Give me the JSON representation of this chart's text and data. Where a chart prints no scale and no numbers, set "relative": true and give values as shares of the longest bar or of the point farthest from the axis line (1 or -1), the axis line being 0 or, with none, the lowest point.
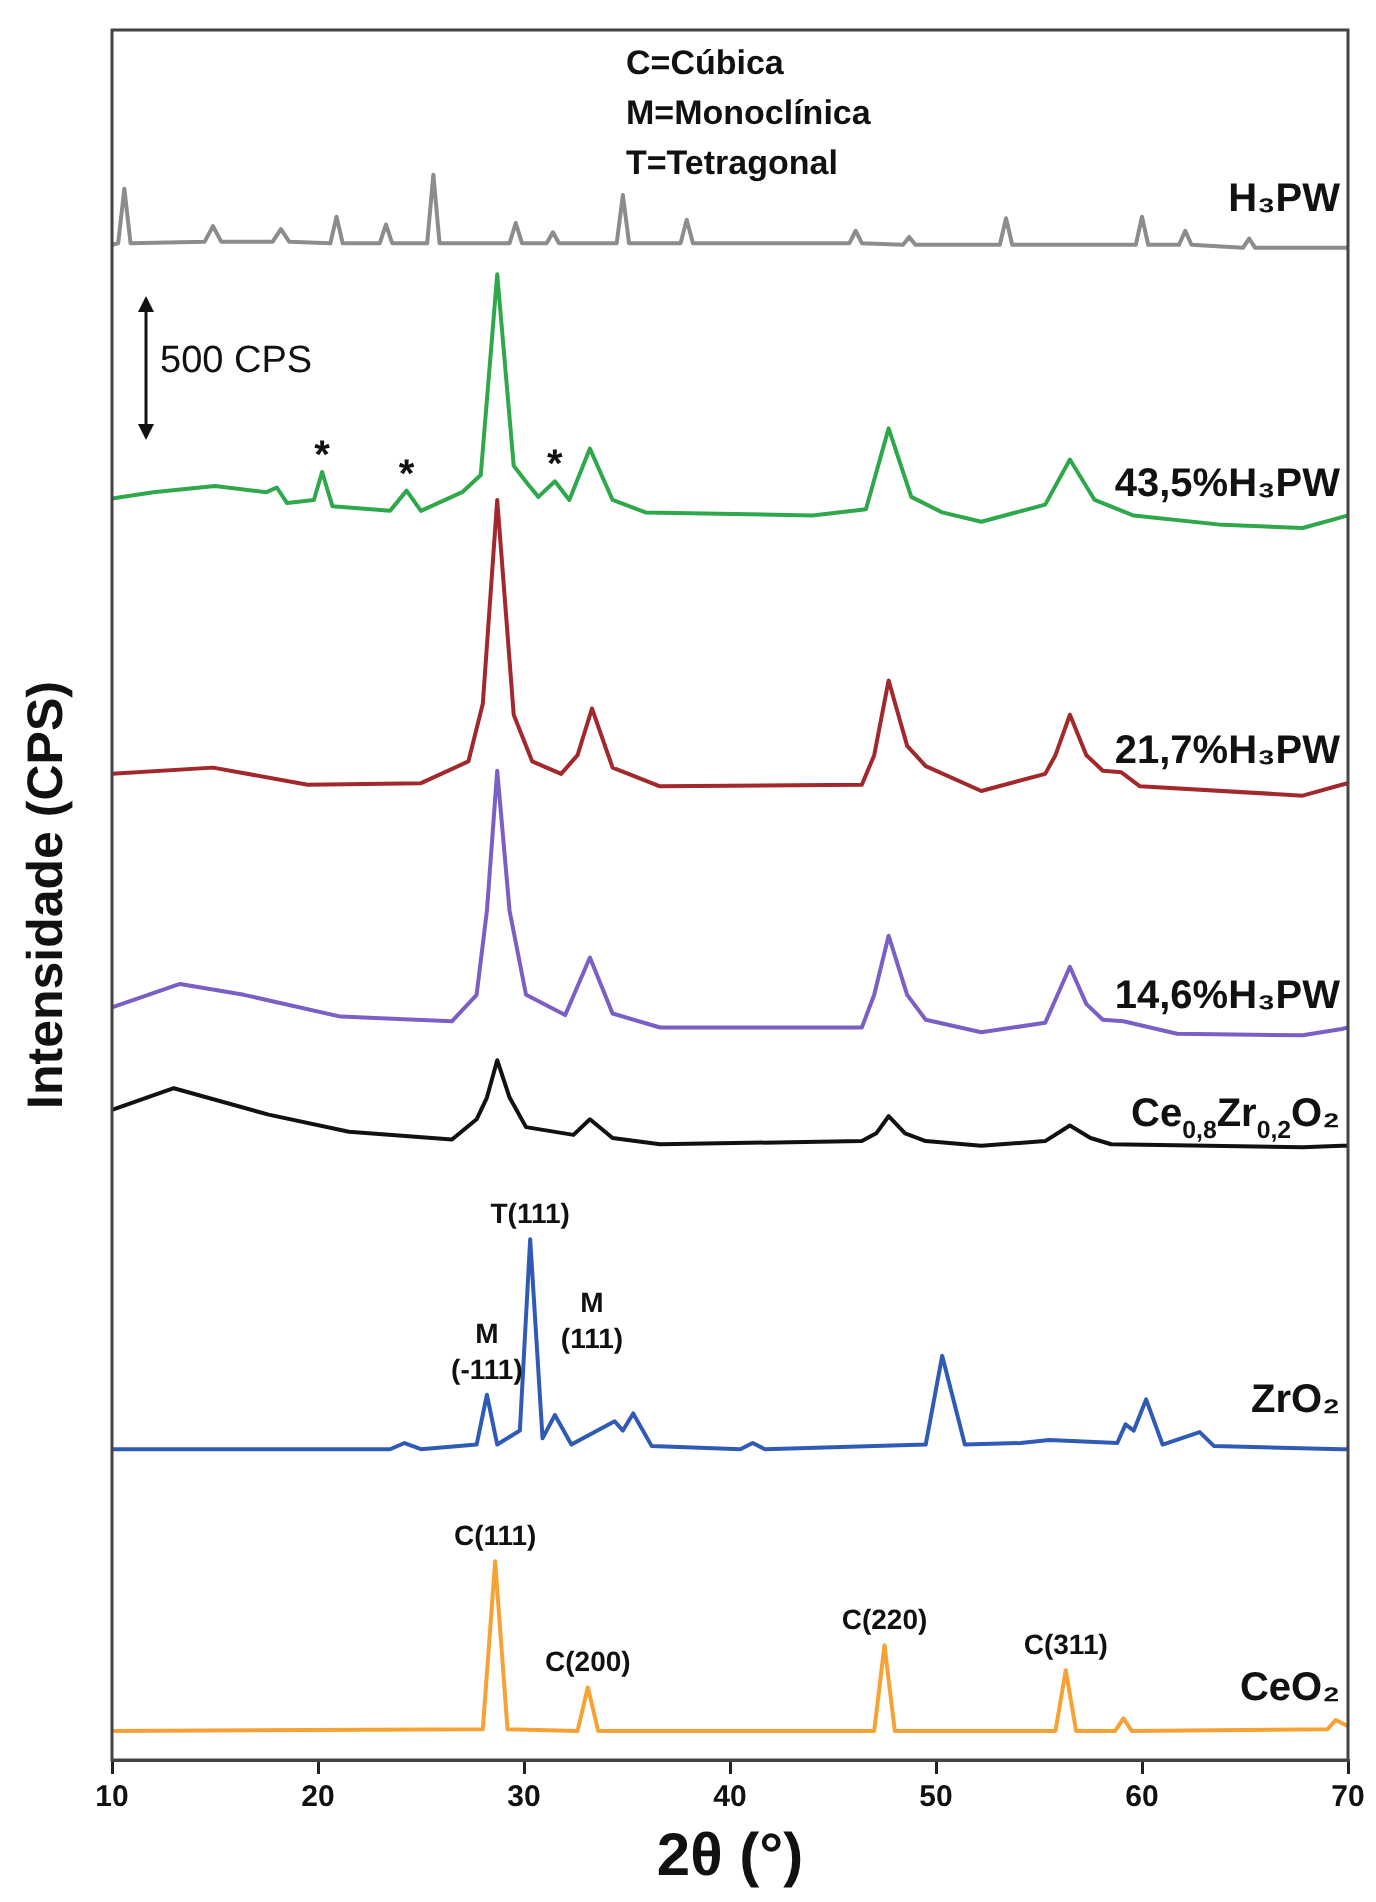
{
  "chart_data": {
    "type": "line",
    "xlabel": "2θ (°)",
    "ylabel": "Intensidade (CPS)",
    "relative": true,
    "marker": "none",
    "xlim": [
      10,
      70
    ],
    "xticks": [
      10,
      20,
      30,
      40,
      50,
      60,
      70
    ],
    "annotations": [
      "C=Cúbica",
      "M=Monoclínica",
      "T=Tetragonal",
      "500 CPS",
      {
        "text": "*",
        "x": 20.2,
        "y": 0.809
      },
      {
        "text": "*",
        "x": 24.3,
        "y": 0.797
      },
      {
        "text": "*",
        "x": 31.5,
        "y": 0.803
      },
      {
        "text": "T(111)",
        "x": 30.3,
        "y": 0.316
      },
      {
        "text": "M\n(-111)",
        "x": 28.2,
        "y": 0.216
      },
      "M\n(111)",
      {
        "text": "C(111)",
        "x": 28.6,
        "y": 0.109
      },
      {
        "text": "C(200)",
        "x": 33.1,
        "y": 0.028
      },
      {
        "text": "C(220)",
        "x": 47.5,
        "y": 0.055
      },
      {
        "text": "C(311)",
        "x": 56.3,
        "y": 0.039
      }
    ],
    "series": [
      {
        "name": "H₃PW",
        "color": "#8c8c8c",
        "x": [
          10,
          10.3,
          10.6,
          10.9,
          14.5,
          14.9,
          15.3,
          17.8,
          18.2,
          18.6,
          20.6,
          20.9,
          21.2,
          23,
          23.3,
          23.6,
          25.3,
          25.6,
          25.9,
          29.3,
          29.6,
          29.9,
          31.1,
          31.4,
          31.7,
          34.5,
          34.8,
          35.1,
          37.6,
          37.9,
          38.2,
          45.8,
          46.1,
          46.4,
          48.4,
          48.7,
          49,
          53.1,
          53.4,
          53.7,
          59.7,
          60,
          60.3,
          61.8,
          62.1,
          62.4,
          64.9,
          65.2,
          65.5,
          70
        ],
        "values": [
          0.955,
          0.956,
          0.991,
          0.956,
          0.957,
          0.967,
          0.957,
          0.957,
          0.965,
          0.957,
          0.956,
          0.973,
          0.956,
          0.956,
          0.968,
          0.956,
          0.956,
          1,
          0.956,
          0.956,
          0.969,
          0.956,
          0.956,
          0.963,
          0.956,
          0.956,
          0.987,
          0.956,
          0.956,
          0.971,
          0.956,
          0.956,
          0.964,
          0.956,
          0.955,
          0.96,
          0.955,
          0.955,
          0.972,
          0.955,
          0.955,
          0.973,
          0.955,
          0.955,
          0.964,
          0.955,
          0.953,
          0.959,
          0.953,
          0.953
        ]
      },
      {
        "name": "43,5%H₃PW",
        "color": "#2ea84a",
        "x": [
          10,
          12,
          15,
          17.5,
          18,
          18.5,
          19.8,
          20.2,
          20.7,
          23.5,
          24.3,
          25,
          27,
          27.9,
          28.7,
          29.5,
          30.2,
          30.7,
          31.5,
          32.2,
          33.2,
          34.3,
          35.9,
          44,
          46.6,
          47.7,
          48.8,
          50.3,
          52.2,
          55.3,
          56.5,
          57.7,
          59.6,
          63.9,
          67.8,
          69.7,
          70
        ],
        "values": [
          0.792,
          0.796,
          0.8,
          0.796,
          0.799,
          0.789,
          0.791,
          0.809,
          0.787,
          0.784,
          0.797,
          0.784,
          0.796,
          0.807,
          0.936,
          0.813,
          0.801,
          0.793,
          0.803,
          0.791,
          0.824,
          0.791,
          0.783,
          0.781,
          0.785,
          0.837,
          0.793,
          0.783,
          0.777,
          0.788,
          0.817,
          0.791,
          0.781,
          0.775,
          0.773,
          0.78,
          0.781
        ]
      },
      {
        "name": "21,7%H₃PW",
        "color": "#a3282c",
        "x": [
          10,
          14.9,
          19.5,
          25,
          27.3,
          28,
          28.7,
          29.5,
          30.4,
          31.8,
          32.6,
          33.3,
          34.3,
          36.6,
          46.4,
          47,
          47.7,
          48.6,
          49.5,
          52.2,
          55.3,
          55.8,
          56.5,
          57.3,
          58.1,
          59,
          59.9,
          67.8,
          69.7,
          70
        ],
        "values": [
          0.615,
          0.619,
          0.608,
          0.609,
          0.623,
          0.66,
          0.791,
          0.653,
          0.623,
          0.615,
          0.627,
          0.657,
          0.619,
          0.607,
          0.608,
          0.627,
          0.675,
          0.633,
          0.62,
          0.604,
          0.615,
          0.627,
          0.653,
          0.627,
          0.617,
          0.616,
          0.607,
          0.601,
          0.608,
          0.609
        ]
      },
      {
        "name": "14,6%H₃PW",
        "color": "#7b5fc4",
        "x": [
          10,
          13.3,
          16.4,
          21.1,
          26.5,
          27.7,
          28.2,
          28.7,
          29.3,
          30.1,
          32,
          33.2,
          34.3,
          36.6,
          46.4,
          47,
          47.7,
          48.6,
          49.5,
          52.2,
          55.3,
          56.5,
          57.3,
          58.1,
          59.1,
          61.7,
          67.8,
          69.7,
          70
        ],
        "values": [
          0.465,
          0.48,
          0.473,
          0.459,
          0.456,
          0.473,
          0.527,
          0.617,
          0.527,
          0.473,
          0.46,
          0.497,
          0.461,
          0.452,
          0.452,
          0.473,
          0.511,
          0.473,
          0.457,
          0.449,
          0.455,
          0.491,
          0.467,
          0.457,
          0.456,
          0.448,
          0.447,
          0.451,
          0.452
        ]
      },
      {
        "name": "Ce$_{0,8}$Zr$_{0,2}$O₂",
        "color": "#111111",
        "x": [
          10,
          13,
          17.6,
          21.5,
          26.5,
          27.7,
          28.2,
          28.7,
          29.3,
          30.1,
          32.4,
          33.2,
          34.3,
          36.6,
          46.4,
          47.1,
          47.7,
          48.5,
          49.5,
          52.2,
          55.3,
          56.5,
          57.5,
          58.5,
          67.8,
          69.7,
          70
        ],
        "values": [
          0.399,
          0.413,
          0.396,
          0.385,
          0.38,
          0.393,
          0.407,
          0.431,
          0.407,
          0.388,
          0.383,
          0.393,
          0.381,
          0.377,
          0.379,
          0.384,
          0.395,
          0.384,
          0.379,
          0.376,
          0.379,
          0.389,
          0.381,
          0.377,
          0.375,
          0.376,
          0.376
        ]
      },
      {
        "name": "ZrO₂",
        "color": "#2f5bb7",
        "x": [
          10,
          23.5,
          24.2,
          25,
          27.7,
          28.2,
          28.7,
          29.8,
          30.3,
          30.9,
          31.5,
          32.3,
          34.4,
          34.8,
          35.3,
          36.2,
          40.5,
          41.1,
          41.7,
          49.5,
          50.3,
          51.4,
          54.1,
          55.5,
          58.8,
          59.2,
          59.6,
          60.2,
          61,
          62.8,
          63.5,
          69.7,
          70
        ],
        "values": [
          0.181,
          0.181,
          0.185,
          0.181,
          0.184,
          0.216,
          0.184,
          0.193,
          0.316,
          0.188,
          0.203,
          0.184,
          0.199,
          0.193,
          0.204,
          0.183,
          0.181,
          0.185,
          0.181,
          0.184,
          0.241,
          0.184,
          0.185,
          0.187,
          0.185,
          0.197,
          0.193,
          0.213,
          0.184,
          0.192,
          0.183,
          0.181,
          0.181
        ]
      },
      {
        "name": "CeO₂",
        "color": "#f7a234",
        "x": [
          10,
          28,
          28.6,
          29.2,
          32.6,
          33.1,
          33.6,
          47,
          47.5,
          48,
          55.8,
          56.3,
          56.8,
          58.7,
          59.1,
          59.5,
          69,
          69.4,
          70
        ],
        "values": [
          0,
          0.001,
          0.109,
          0.001,
          0,
          0.028,
          0,
          0,
          0.055,
          0,
          0,
          0.039,
          0,
          0,
          0.008,
          0,
          0.001,
          0.007,
          0.003
        ]
      }
    ]
  }
}
